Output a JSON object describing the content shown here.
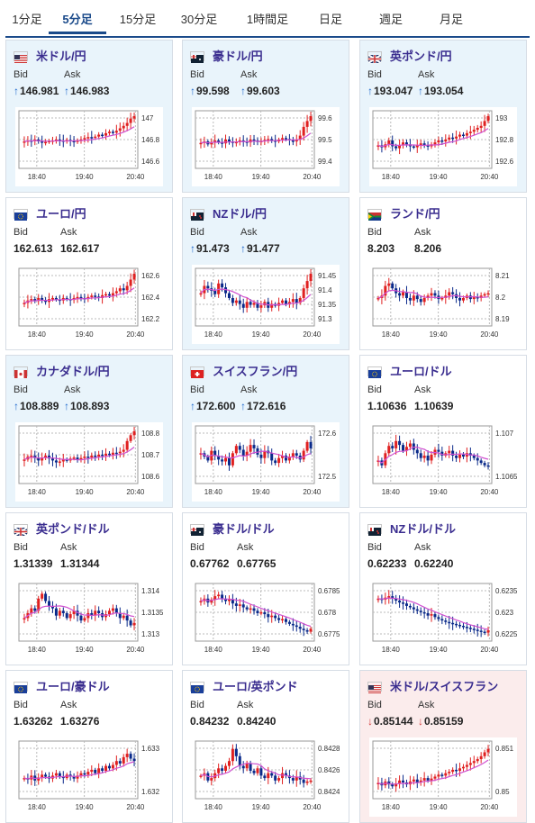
{
  "tabs": [
    {
      "label": "1分足",
      "active": false
    },
    {
      "label": "5分足",
      "active": true
    },
    {
      "label": "15分足",
      "active": false
    },
    {
      "label": "30分足",
      "active": false
    },
    {
      "label": "1時間足",
      "active": false
    },
    {
      "label": "日足",
      "active": false
    },
    {
      "label": "週足",
      "active": false
    },
    {
      "label": "月足",
      "active": false
    }
  ],
  "colors": {
    "up_card": "#e9f4fb",
    "down_card": "#fbecec",
    "title": "#3a2d8f",
    "up_arrow": "#1a66cc",
    "down_arrow": "#d43a3a",
    "bull": "#e02020",
    "bear": "#0a2a8a",
    "ma": "#d050d0"
  },
  "bid_label": "Bid",
  "ask_label": "Ask",
  "pairs": [
    {
      "name": "米ドル/円",
      "flag": "flag-us",
      "bid": "146.981",
      "ask": "146.983",
      "trend": "up",
      "highlight": "up",
      "chart_data": {
        "type": "candlestick",
        "x_ticks": [
          "18:40",
          "19:40",
          "20:40"
        ],
        "y_ticks": [
          "147",
          "146.8",
          "146.6"
        ],
        "y_range": [
          146.52,
          147.04
        ],
        "level": [
          0.48,
          0.5,
          0.49,
          0.52,
          0.48,
          0.46,
          0.47,
          0.49,
          0.5,
          0.52,
          0.5,
          0.48,
          0.51,
          0.49,
          0.47,
          0.5,
          0.52,
          0.55,
          0.57,
          0.56,
          0.58,
          0.62,
          0.6,
          0.65,
          0.68,
          0.66,
          0.7,
          0.75,
          0.8,
          0.86,
          0.95,
          1.0
        ]
      }
    },
    {
      "name": "豪ドル/円",
      "flag": "flag-au",
      "bid": "99.598",
      "ask": "99.603",
      "trend": "up",
      "highlight": "up",
      "chart_data": {
        "type": "candlestick",
        "x_ticks": [
          "18:40",
          "19:40",
          "20:40"
        ],
        "y_ticks": [
          "99.6",
          "99.5",
          "99.4"
        ],
        "y_range": [
          99.36,
          99.64
        ],
        "level": [
          0.45,
          0.48,
          0.42,
          0.47,
          0.5,
          0.46,
          0.44,
          0.52,
          0.48,
          0.45,
          0.47,
          0.5,
          0.48,
          0.46,
          0.52,
          0.5,
          0.47,
          0.49,
          0.51,
          0.53,
          0.5,
          0.48,
          0.52,
          0.55,
          0.53,
          0.5,
          0.48,
          0.52,
          0.6,
          0.78,
          0.9,
          1.0
        ]
      }
    },
    {
      "name": "英ポンド/円",
      "flag": "flag-uk",
      "bid": "193.047",
      "ask": "193.054",
      "trend": "up",
      "highlight": "up",
      "chart_data": {
        "type": "candlestick",
        "x_ticks": [
          "18:40",
          "19:40",
          "20:40"
        ],
        "y_ticks": [
          "193",
          "192.8",
          "192.6"
        ],
        "y_range": [
          192.52,
          193.08
        ],
        "level": [
          0.4,
          0.36,
          0.42,
          0.5,
          0.38,
          0.34,
          0.4,
          0.46,
          0.42,
          0.38,
          0.36,
          0.4,
          0.44,
          0.4,
          0.38,
          0.42,
          0.46,
          0.5,
          0.48,
          0.52,
          0.56,
          0.54,
          0.58,
          0.62,
          0.6,
          0.65,
          0.68,
          0.72,
          0.76,
          0.8,
          0.9,
          1.0
        ]
      }
    },
    {
      "name": "ユーロ/円",
      "flag": "flag-eu",
      "bid": "162.613",
      "ask": "162.617",
      "trend": "none",
      "highlight": "none",
      "chart_data": {
        "type": "candlestick",
        "x_ticks": [
          "18:40",
          "19:40",
          "20:40"
        ],
        "y_ticks": [
          "162.6",
          "162.4",
          "162.2"
        ],
        "y_range": [
          162.12,
          162.66
        ],
        "level": [
          0.4,
          0.45,
          0.48,
          0.44,
          0.5,
          0.46,
          0.42,
          0.48,
          0.5,
          0.47,
          0.45,
          0.5,
          0.48,
          0.46,
          0.5,
          0.52,
          0.5,
          0.48,
          0.52,
          0.55,
          0.53,
          0.5,
          0.56,
          0.58,
          0.55,
          0.6,
          0.64,
          0.7,
          0.66,
          0.75,
          0.88,
          1.0
        ]
      }
    },
    {
      "name": "NZドル/円",
      "flag": "flag-nz",
      "bid": "91.473",
      "ask": "91.477",
      "trend": "up",
      "highlight": "up",
      "chart_data": {
        "type": "candlestick",
        "x_ticks": [
          "18:40",
          "19:40",
          "20:40"
        ],
        "y_ticks": [
          "91.45",
          "91.4",
          "91.35",
          "91.3"
        ],
        "y_range": [
          91.27,
          91.49
        ],
        "level": [
          0.6,
          0.75,
          0.7,
          0.65,
          0.58,
          0.8,
          0.72,
          0.6,
          0.5,
          0.4,
          0.45,
          0.38,
          0.3,
          0.42,
          0.36,
          0.4,
          0.3,
          0.35,
          0.42,
          0.3,
          0.38,
          0.34,
          0.4,
          0.45,
          0.38,
          0.42,
          0.48,
          0.4,
          0.5,
          0.7,
          0.85,
          1.0
        ]
      }
    },
    {
      "name": "ランド/円",
      "flag": "flag-za",
      "bid": "8.203",
      "ask": "8.206",
      "trend": "none",
      "highlight": "none",
      "chart_data": {
        "type": "candlestick",
        "x_ticks": [
          "18:40",
          "19:40",
          "20:40"
        ],
        "y_ticks": [
          "8.21",
          "8.2",
          "8.19"
        ],
        "y_range": [
          8.185,
          8.215
        ],
        "level": [
          0.5,
          0.55,
          0.75,
          0.8,
          0.7,
          0.6,
          0.55,
          0.62,
          0.5,
          0.45,
          0.55,
          0.48,
          0.42,
          0.5,
          0.55,
          0.6,
          0.55,
          0.48,
          0.5,
          0.55,
          0.62,
          0.58,
          0.5,
          0.45,
          0.5,
          0.55,
          0.48,
          0.52,
          0.5,
          0.55,
          0.58,
          0.6
        ]
      }
    },
    {
      "name": "カナダドル/円",
      "flag": "flag-ca",
      "bid": "108.889",
      "ask": "108.893",
      "trend": "up",
      "highlight": "up",
      "chart_data": {
        "type": "candlestick",
        "x_ticks": [
          "18:40",
          "19:40",
          "20:40"
        ],
        "y_ticks": [
          "108.8",
          "108.7",
          "108.6"
        ],
        "y_range": [
          108.56,
          108.92
        ],
        "level": [
          0.42,
          0.48,
          0.5,
          0.45,
          0.4,
          0.46,
          0.5,
          0.44,
          0.4,
          0.36,
          0.38,
          0.42,
          0.4,
          0.44,
          0.46,
          0.42,
          0.45,
          0.48,
          0.46,
          0.5,
          0.48,
          0.52,
          0.5,
          0.54,
          0.52,
          0.56,
          0.55,
          0.58,
          0.62,
          0.8,
          0.92,
          1.0
        ]
      }
    },
    {
      "name": "スイスフラン/円",
      "flag": "flag-ch",
      "bid": "172.600",
      "ask": "172.616",
      "trend": "up",
      "highlight": "up",
      "chart_data": {
        "type": "candlestick",
        "x_ticks": [
          "18:40",
          "19:40",
          "20:40"
        ],
        "y_ticks": [
          "172.6",
          "172.5"
        ],
        "y_range": [
          172.46,
          172.66
        ],
        "level": [
          0.55,
          0.48,
          0.4,
          0.6,
          0.5,
          0.42,
          0.38,
          0.45,
          0.3,
          0.55,
          0.7,
          0.62,
          0.5,
          0.58,
          0.72,
          0.65,
          0.52,
          0.45,
          0.6,
          0.55,
          0.4,
          0.35,
          0.45,
          0.5,
          0.4,
          0.48,
          0.55,
          0.5,
          0.42,
          0.6,
          0.78,
          0.65
        ]
      }
    },
    {
      "name": "ユーロ/ドル",
      "flag": "flag-eu",
      "bid": "1.10636",
      "ask": "1.10639",
      "trend": "none",
      "highlight": "none",
      "chart_data": {
        "type": "candlestick",
        "x_ticks": [
          "18:40",
          "19:40",
          "20:40"
        ],
        "y_ticks": [
          "1.107",
          "1.1065"
        ],
        "y_range": [
          1.1061,
          1.1074
        ],
        "level": [
          0.4,
          0.3,
          0.55,
          0.7,
          0.65,
          0.8,
          0.72,
          0.6,
          0.68,
          0.75,
          0.62,
          0.55,
          0.45,
          0.5,
          0.4,
          0.52,
          0.62,
          0.58,
          0.5,
          0.55,
          0.6,
          0.5,
          0.45,
          0.52,
          0.48,
          0.55,
          0.5,
          0.45,
          0.4,
          0.35,
          0.3,
          0.28
        ]
      }
    },
    {
      "name": "英ポンド/ドル",
      "flag": "flag-uk",
      "bid": "1.31339",
      "ask": "1.31344",
      "trend": "none",
      "highlight": "none",
      "chart_data": {
        "type": "candlestick",
        "x_ticks": [
          "18:40",
          "19:40",
          "20:40"
        ],
        "y_ticks": [
          "1.314",
          "1.3135",
          "1.313"
        ],
        "y_range": [
          1.3127,
          1.3144
        ],
        "level": [
          0.4,
          0.5,
          0.6,
          0.55,
          0.8,
          0.9,
          0.75,
          0.65,
          0.6,
          0.45,
          0.55,
          0.5,
          0.4,
          0.48,
          0.55,
          0.45,
          0.35,
          0.4,
          0.5,
          0.45,
          0.55,
          0.5,
          0.42,
          0.48,
          0.55,
          0.6,
          0.5,
          0.4,
          0.45,
          0.35,
          0.25,
          0.3
        ]
      }
    },
    {
      "name": "豪ドル/ドル",
      "flag": "flag-au",
      "bid": "0.67762",
      "ask": "0.67765",
      "trend": "none",
      "highlight": "none",
      "chart_data": {
        "type": "candlestick",
        "x_ticks": [
          "18:40",
          "19:40",
          "20:40"
        ],
        "y_ticks": [
          "0.6785",
          "0.678",
          "0.6775"
        ],
        "y_range": [
          0.67725,
          0.67875
        ],
        "level": [
          0.75,
          0.8,
          0.72,
          0.78,
          0.85,
          0.88,
          0.8,
          0.75,
          0.78,
          0.7,
          0.65,
          0.68,
          0.62,
          0.58,
          0.6,
          0.55,
          0.5,
          0.52,
          0.48,
          0.42,
          0.45,
          0.4,
          0.36,
          0.38,
          0.32,
          0.28,
          0.25,
          0.22,
          0.18,
          0.15,
          0.12,
          0.18
        ]
      }
    },
    {
      "name": "NZドル/ドル",
      "flag": "flag-nz",
      "bid": "0.62233",
      "ask": "0.62240",
      "trend": "none",
      "highlight": "none",
      "chart_data": {
        "type": "candlestick",
        "x_ticks": [
          "18:40",
          "19:40",
          "20:40"
        ],
        "y_ticks": [
          "0.6235",
          "0.623",
          "0.6225"
        ],
        "y_range": [
          0.6221,
          0.6237
        ],
        "level": [
          0.8,
          0.78,
          0.82,
          0.85,
          0.8,
          0.76,
          0.72,
          0.7,
          0.65,
          0.62,
          0.58,
          0.55,
          0.52,
          0.5,
          0.45,
          0.48,
          0.42,
          0.38,
          0.35,
          0.32,
          0.3,
          0.28,
          0.26,
          0.24,
          0.22,
          0.2,
          0.18,
          0.16,
          0.14,
          0.12,
          0.1,
          0.15
        ]
      }
    },
    {
      "name": "ユーロ/豪ドル",
      "flag": "flag-eu",
      "bid": "1.63262",
      "ask": "1.63276",
      "trend": "none",
      "highlight": "none",
      "chart_data": {
        "type": "candlestick",
        "x_ticks": [
          "18:40",
          "19:40",
          "20:40"
        ],
        "y_ticks": [
          "1.633",
          "1.632"
        ],
        "y_range": [
          1.6314,
          1.6334
        ],
        "level": [
          0.35,
          0.32,
          0.4,
          0.3,
          0.36,
          0.42,
          0.38,
          0.34,
          0.4,
          0.45,
          0.38,
          0.35,
          0.42,
          0.38,
          0.34,
          0.4,
          0.45,
          0.42,
          0.48,
          0.52,
          0.45,
          0.55,
          0.5,
          0.6,
          0.55,
          0.62,
          0.7,
          0.65,
          0.78,
          0.85,
          0.75,
          0.7
        ]
      }
    },
    {
      "name": "ユーロ/英ポンド",
      "flag": "flag-eu",
      "bid": "0.84232",
      "ask": "0.84240",
      "trend": "none",
      "highlight": "none",
      "chart_data": {
        "type": "candlestick",
        "x_ticks": [
          "18:40",
          "19:40",
          "20:40"
        ],
        "y_ticks": [
          "0.8428",
          "0.8426",
          "0.8424"
        ],
        "y_range": [
          0.84225,
          0.84295
        ],
        "level": [
          0.4,
          0.45,
          0.3,
          0.35,
          0.45,
          0.55,
          0.5,
          0.6,
          0.7,
          0.95,
          0.8,
          0.6,
          0.55,
          0.65,
          0.5,
          0.45,
          0.55,
          0.4,
          0.35,
          0.45,
          0.4,
          0.3,
          0.35,
          0.45,
          0.4,
          0.35,
          0.3,
          0.38,
          0.32,
          0.25,
          0.28,
          0.3
        ]
      }
    },
    {
      "name": "米ドル/スイスフラン",
      "flag": "flag-us",
      "bid": "0.85144",
      "ask": "0.85159",
      "trend": "down",
      "highlight": "down",
      "chart_data": {
        "type": "candlestick",
        "x_ticks": [
          "18:40",
          "19:40",
          "20:40"
        ],
        "y_ticks": [
          "0.851",
          "0.85"
        ],
        "y_range": [
          0.8495,
          0.8515
        ],
        "level": [
          0.25,
          0.2,
          0.28,
          0.22,
          0.18,
          0.24,
          0.3,
          0.26,
          0.22,
          0.28,
          0.32,
          0.26,
          0.3,
          0.35,
          0.3,
          0.34,
          0.38,
          0.42,
          0.4,
          0.45,
          0.48,
          0.52,
          0.5,
          0.55,
          0.58,
          0.62,
          0.66,
          0.7,
          0.74,
          0.8,
          0.88,
          0.95
        ]
      }
    }
  ]
}
